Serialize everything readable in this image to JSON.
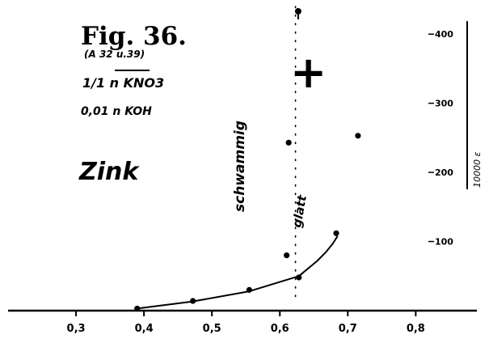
{
  "figure": {
    "title": "Fig. 36.",
    "subtitle": "(A 32 u.39)",
    "solution_line1": "1/1 n KNO3",
    "solution_line2": "0,01 n KOH",
    "metal": "Zink",
    "annotation_left": "schwammig",
    "annotation_curve": "glatt",
    "sign": "+",
    "y_axis_label": "10000 ε"
  },
  "chart_data": {
    "type": "scatter",
    "title": "Fig. 36.",
    "xlabel": "",
    "ylabel": "10000 ε",
    "x_ticks": [
      "0,3",
      "0,4",
      "0,5",
      "0,6",
      "0,7",
      "0,8"
    ],
    "x_tick_values": [
      0.3,
      0.4,
      0.5,
      0.6,
      0.7,
      0.8
    ],
    "y_ticks": [
      "100",
      "200",
      "300",
      "400"
    ],
    "y_tick_values": [
      100,
      200,
      300,
      400
    ],
    "xlim": [
      0.2,
      0.89
    ],
    "ylim": [
      0,
      440
    ],
    "grid": false,
    "series": [
      {
        "points": [
          {
            "x": 0.39,
            "y": 3
          },
          {
            "x": 0.472,
            "y": 14
          },
          {
            "x": 0.555,
            "y": 30
          },
          {
            "x": 0.61,
            "y": 80
          },
          {
            "x": 0.628,
            "y": 48
          },
          {
            "x": 0.613,
            "y": 243
          },
          {
            "x": 0.683,
            "y": 112
          },
          {
            "x": 0.715,
            "y": 253
          }
        ],
        "curve": [
          [
            0.39,
            3
          ],
          [
            0.47,
            13
          ],
          [
            0.555,
            28
          ],
          [
            0.628,
            50
          ],
          [
            0.655,
            72
          ],
          [
            0.668,
            85
          ],
          [
            0.678,
            97
          ],
          [
            0.685,
            108
          ]
        ]
      }
    ],
    "dotted_vertical_line": {
      "x": 0.623,
      "y_from": 10,
      "y_to": 440
    },
    "top_marker": {
      "x": 0.627,
      "y": 433
    }
  }
}
